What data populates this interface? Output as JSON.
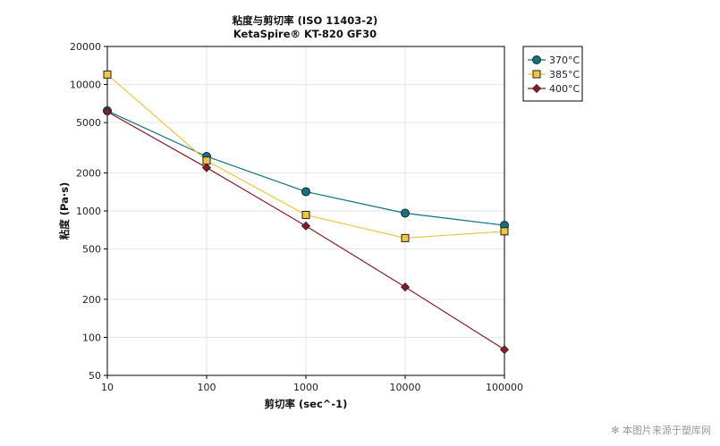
{
  "chart_data": {
    "type": "line",
    "title": "粘度与剪切率 (ISO 11403-2)",
    "subtitle": "KetaSpire® KT-820 GF30",
    "xlabel": "剪切率 (sec^-1)",
    "ylabel": "粘度 (Pa·s)",
    "x_scale": "log",
    "y_scale": "log",
    "xlim": [
      10,
      100000
    ],
    "ylim": [
      50,
      20000
    ],
    "x_ticks": [
      10,
      100,
      1000,
      10000,
      100000
    ],
    "y_ticks": [
      50,
      100,
      200,
      500,
      1000,
      2000,
      5000,
      10000,
      20000
    ],
    "grid": true,
    "legend_position": "top-right-outside",
    "x": [
      10,
      100,
      1000,
      10000,
      100000
    ],
    "series": [
      {
        "name": "370°C",
        "color": "#0e7480",
        "marker": "circle",
        "values": [
          6200,
          2700,
          1420,
          960,
          770
        ]
      },
      {
        "name": "385°C",
        "color": "#f4c542",
        "marker": "square",
        "values": [
          12000,
          2500,
          930,
          610,
          690
        ]
      },
      {
        "name": "400°C",
        "color": "#8b1a2a",
        "marker": "diamond",
        "values": [
          6100,
          2200,
          760,
          250,
          80
        ]
      }
    ]
  },
  "watermark": "本图片来源于塑库网"
}
